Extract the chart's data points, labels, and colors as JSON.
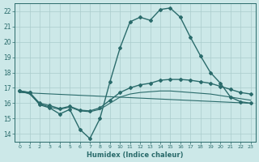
{
  "xlabel": "Humidex (Indice chaleur)",
  "bg_color": "#cce8e8",
  "grid_color": "#aacccc",
  "line_color": "#2a6b6b",
  "xlim": [
    -0.5,
    23.5
  ],
  "ylim": [
    13.5,
    22.5
  ],
  "xticks": [
    0,
    1,
    2,
    3,
    4,
    5,
    6,
    7,
    8,
    9,
    10,
    11,
    12,
    13,
    14,
    15,
    16,
    17,
    18,
    19,
    20,
    21,
    22,
    23
  ],
  "yticks": [
    14,
    15,
    16,
    17,
    18,
    19,
    20,
    21,
    22
  ],
  "series": [
    {
      "x": [
        0,
        1,
        2,
        3,
        4,
        5,
        6,
        7,
        8,
        9,
        10,
        11,
        12,
        13,
        14,
        15,
        16,
        17,
        18,
        19,
        20,
        21,
        22,
        23
      ],
      "y": [
        16.8,
        16.7,
        15.9,
        15.7,
        15.3,
        15.6,
        14.3,
        13.7,
        15.0,
        17.4,
        19.6,
        21.3,
        21.6,
        21.4,
        22.1,
        22.2,
        21.6,
        20.3,
        19.1,
        18.0,
        17.3,
        16.4,
        16.1,
        16.0
      ],
      "marker": "D",
      "markersize": 2.0,
      "linewidth": 1.0
    },
    {
      "x": [
        0,
        1,
        2,
        3,
        4,
        5,
        6,
        7,
        8,
        9,
        10,
        11,
        12,
        13,
        14,
        15,
        16,
        17,
        18,
        19,
        20,
        21,
        22,
        23
      ],
      "y": [
        16.8,
        16.7,
        16.0,
        15.85,
        15.65,
        15.8,
        15.55,
        15.5,
        15.7,
        16.2,
        16.7,
        17.0,
        17.2,
        17.3,
        17.5,
        17.55,
        17.55,
        17.5,
        17.4,
        17.3,
        17.1,
        16.9,
        16.7,
        16.6
      ],
      "marker": "D",
      "markersize": 2.0,
      "linewidth": 1.0
    },
    {
      "x": [
        0,
        1,
        2,
        3,
        4,
        5,
        6,
        7,
        8,
        9,
        10,
        11,
        12,
        13,
        14,
        15,
        16,
        17,
        18,
        19,
        20,
        21,
        22,
        23
      ],
      "y": [
        16.8,
        16.6,
        15.95,
        15.75,
        15.6,
        15.75,
        15.5,
        15.45,
        15.6,
        16.0,
        16.4,
        16.6,
        16.7,
        16.75,
        16.8,
        16.8,
        16.75,
        16.7,
        16.65,
        16.6,
        16.5,
        16.4,
        16.3,
        16.2
      ],
      "marker": null,
      "markersize": 0,
      "linewidth": 0.8
    },
    {
      "x": [
        0,
        23
      ],
      "y": [
        16.7,
        16.0
      ],
      "marker": null,
      "markersize": 0,
      "linewidth": 0.8
    }
  ]
}
